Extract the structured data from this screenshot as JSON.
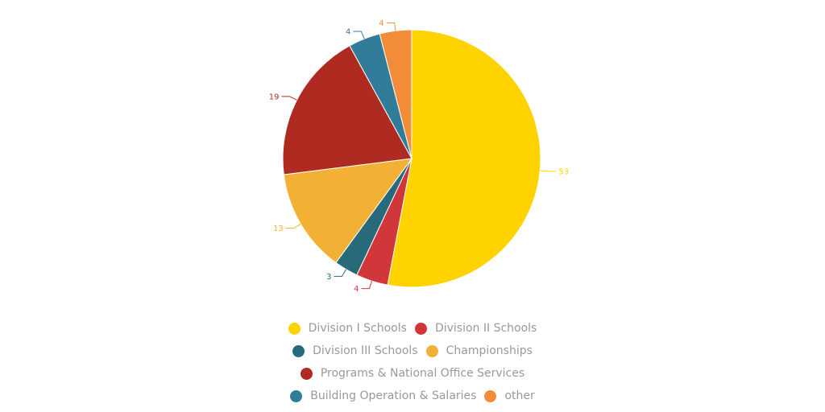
{
  "chart_data": {
    "type": "pie",
    "title": "",
    "start_angle": "top, clockwise",
    "categories": [
      "Division I Schools",
      "Division II Schools",
      "Division III Schools",
      "Championships",
      "Programs & National Office Services",
      "Building Operation & Salaries",
      "other"
    ],
    "values": [
      53,
      4,
      3,
      13,
      19,
      4,
      4
    ],
    "colors": [
      "#FFD300",
      "#D0363A",
      "#276B7B",
      "#F2B134",
      "#AF2B22",
      "#317D99",
      "#F28C38"
    ],
    "data_labels": [
      "53",
      "4",
      "3",
      "13",
      "19",
      "4",
      "4"
    ],
    "legend_position": "bottom"
  },
  "legend": {
    "rows": [
      [
        {
          "label": "Division I Schools",
          "color": "#FFD300"
        },
        {
          "label": "Division II Schools",
          "color": "#D0363A"
        }
      ],
      [
        {
          "label": "Division III Schools",
          "color": "#276B7B"
        },
        {
          "label": "Championships",
          "color": "#F2B134"
        }
      ],
      [
        {
          "label": "Programs & National Office Services",
          "color": "#AF2B22"
        }
      ],
      [
        {
          "label": "Building Operation & Salaries",
          "color": "#317D99"
        },
        {
          "label": "other",
          "color": "#F28C38"
        }
      ]
    ]
  }
}
